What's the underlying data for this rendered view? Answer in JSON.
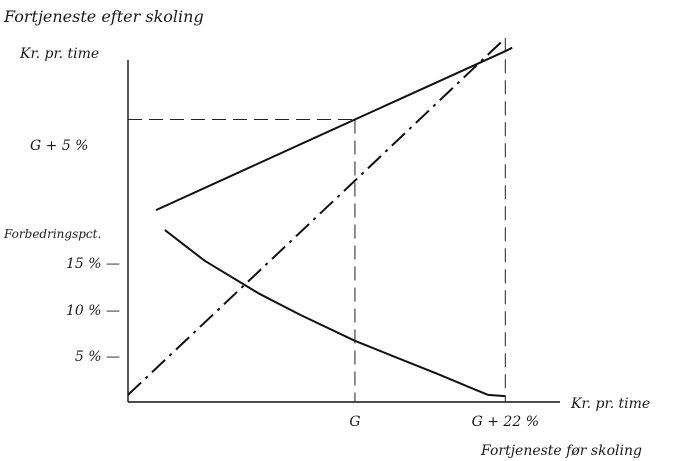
{
  "chart_data": {
    "type": "line",
    "y_axis_title": "Fortjeneste efter skoling",
    "y_axis_unit": "Kr. pr. time",
    "y_secondary_title": "Forbedringspct.",
    "x_axis_title": "Fortjeneste før skoling",
    "x_axis_unit": "Kr. pr. time",
    "x_ticks": [
      "G",
      "G + 22 %"
    ],
    "y_ticks": [
      "G + 5 %"
    ],
    "y_secondary_ticks": [
      "15 % —",
      "10 % —",
      "5 % —"
    ],
    "x_tick_values": [
      100,
      122
    ],
    "y_tick_values": [
      105
    ],
    "y_secondary_tick_values": [
      15,
      10,
      5
    ],
    "xlim": [
      66.8,
      130
    ],
    "ylim": [
      0,
      15
    ],
    "series": [
      {
        "name": "",
        "style": "solid",
        "points": [
          [
            70.9,
            16.3
          ],
          [
            100,
            24.0
          ],
          [
            122,
            29.8
          ],
          [
            123,
            30.1
          ]
        ]
      },
      {
        "name": "",
        "style": "dash-dot",
        "points": [
          [
            66.8,
            0.6
          ],
          [
            100,
            18.8
          ],
          [
            122,
            30.9
          ]
        ]
      },
      {
        "name": "",
        "style": "solid",
        "points": [
          [
            72.2,
            14.6
          ],
          [
            78,
            12.0
          ],
          [
            86,
            9.2
          ],
          [
            92,
            7.4
          ],
          [
            100,
            5.2
          ],
          [
            106,
            3.8
          ],
          [
            112,
            2.4
          ],
          [
            117,
            1.2
          ],
          [
            119.5,
            0.6
          ],
          [
            122,
            0.5
          ]
        ]
      }
    ],
    "reference_lines": [
      {
        "style": "dashed",
        "from": [
          66.8,
          24.0
        ],
        "to": [
          100,
          24.0
        ]
      },
      {
        "style": "dashed",
        "from": [
          100,
          24.0
        ],
        "to": [
          100,
          0
        ]
      },
      {
        "style": "dashed",
        "from": [
          122,
          30.9
        ],
        "to": [
          122,
          0
        ]
      }
    ]
  }
}
